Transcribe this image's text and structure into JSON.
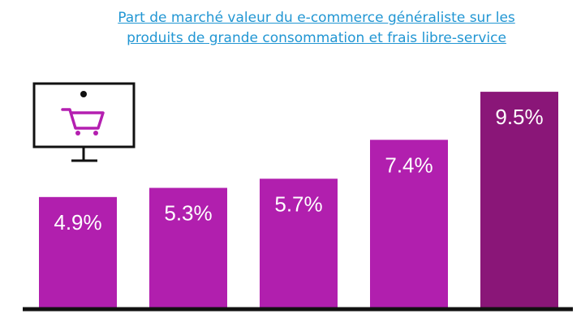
{
  "title": {
    "line1": "Part de marché  valeur du e-commerce généraliste sur les",
    "line2": "produits de grande consommation et frais libre-service"
  },
  "icon": {
    "name": "monitor-cart-icon",
    "color": "#b41fb0"
  },
  "colors": {
    "bar": "#b11fae",
    "bar_last": "#8a1678",
    "label": "#ffffff",
    "axis": "#111111",
    "title": "#2196d3"
  },
  "chart_data": {
    "type": "bar",
    "categories": [
      "",
      "",
      "",
      "",
      ""
    ],
    "values": [
      4.9,
      5.3,
      5.7,
      7.4,
      9.5
    ],
    "labels": [
      "4.9%",
      "5.3%",
      "5.7%",
      "7.4%",
      "9.5%"
    ],
    "ylim": [
      0,
      10
    ],
    "grid": false,
    "legend": "none"
  }
}
